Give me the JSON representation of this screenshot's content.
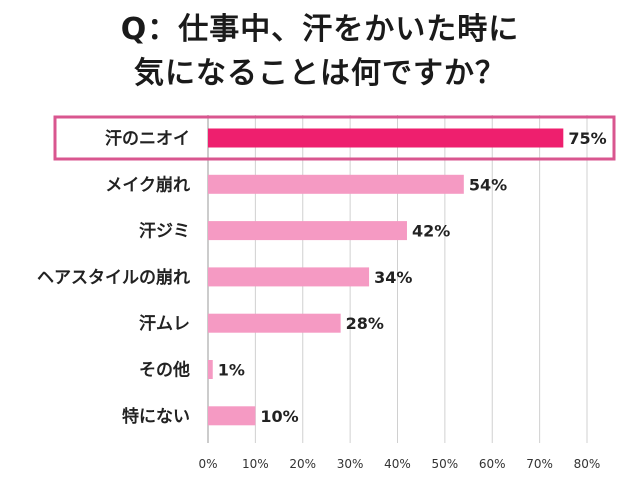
{
  "chart_data": {
    "type": "bar",
    "orientation": "horizontal",
    "title": "Q：仕事中、汗をかいた時に 気になることは何ですか？",
    "title_lines": [
      "Q：仕事中、汗をかいた時に",
      "気になることは何ですか？"
    ],
    "categories": [
      "汗のニオイ",
      "メイク崩れ",
      "汗ジミ",
      "ヘアスタイルの崩れ",
      "汗ムレ",
      "その他",
      "特にない"
    ],
    "values": [
      75,
      54,
      42,
      34,
      28,
      1,
      10
    ],
    "value_labels": [
      "75%",
      "54%",
      "42%",
      "34%",
      "28%",
      "1%",
      "10%"
    ],
    "xlim": [
      0,
      80
    ],
    "xticks": [
      0,
      10,
      20,
      30,
      40,
      50,
      60,
      70,
      80
    ],
    "xtick_labels": [
      "0%",
      "10%",
      "20%",
      "30%",
      "40%",
      "50%",
      "60%",
      "70%",
      "80%"
    ],
    "grid": true,
    "highlight_index": 0,
    "colors": {
      "highlight": "#ee1f6e",
      "bar": "#f59ac3",
      "frame": "#d9568f",
      "grid": "#d0d0d0"
    }
  }
}
